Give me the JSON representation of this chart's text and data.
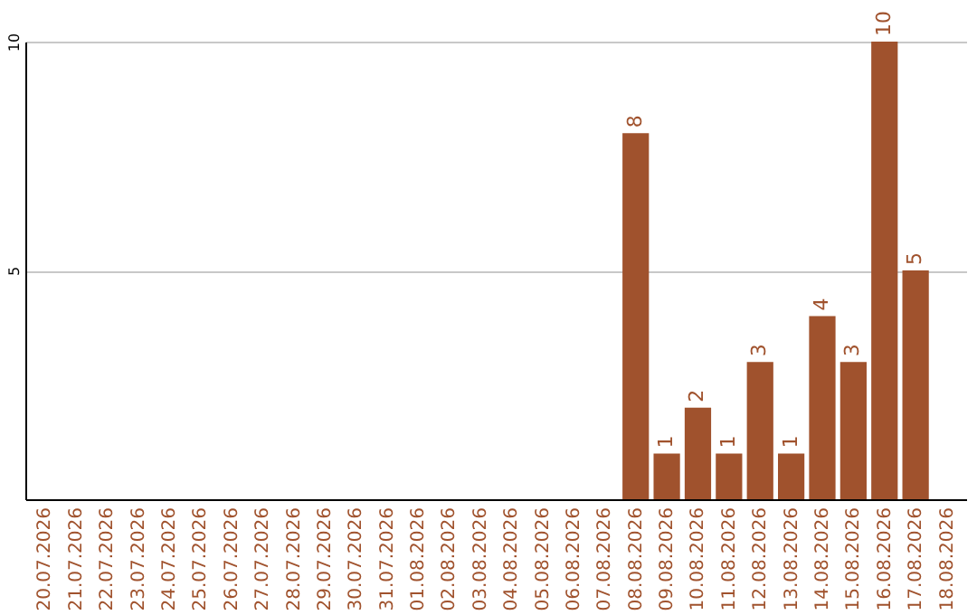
{
  "chart_data": {
    "type": "bar",
    "categories": [
      "20.07.2026",
      "21.07.2026",
      "22.07.2026",
      "23.07.2026",
      "24.07.2026",
      "25.07.2026",
      "26.07.2026",
      "27.07.2026",
      "28.07.2026",
      "29.07.2026",
      "30.07.2026",
      "31.07.2026",
      "01.08.2026",
      "02.08.2026",
      "03.08.2026",
      "04.08.2026",
      "05.08.2026",
      "06.08.2026",
      "07.08.2026",
      "08.08.2026",
      "09.08.2026",
      "10.08.2026",
      "11.08.2026",
      "12.08.2026",
      "13.08.2026",
      "14.08.2026",
      "15.08.2026",
      "16.08.2026",
      "17.08.2026",
      "18.08.2026"
    ],
    "values": [
      0,
      0,
      0,
      0,
      0,
      0,
      0,
      0,
      0,
      0,
      0,
      0,
      0,
      0,
      0,
      0,
      0,
      0,
      0,
      8,
      1,
      2,
      1,
      3,
      1,
      4,
      3,
      10,
      5,
      0
    ],
    "value_labels": [
      null,
      null,
      null,
      null,
      null,
      null,
      null,
      null,
      null,
      null,
      null,
      null,
      null,
      null,
      null,
      null,
      null,
      null,
      null,
      "8",
      "1",
      "2",
      "1",
      "3",
      "1",
      "4",
      "3",
      "10",
      "5",
      null
    ],
    "color": "#a0522d",
    "ylim": [
      0,
      10
    ],
    "yticks": [
      5,
      10
    ],
    "grid": "y"
  }
}
